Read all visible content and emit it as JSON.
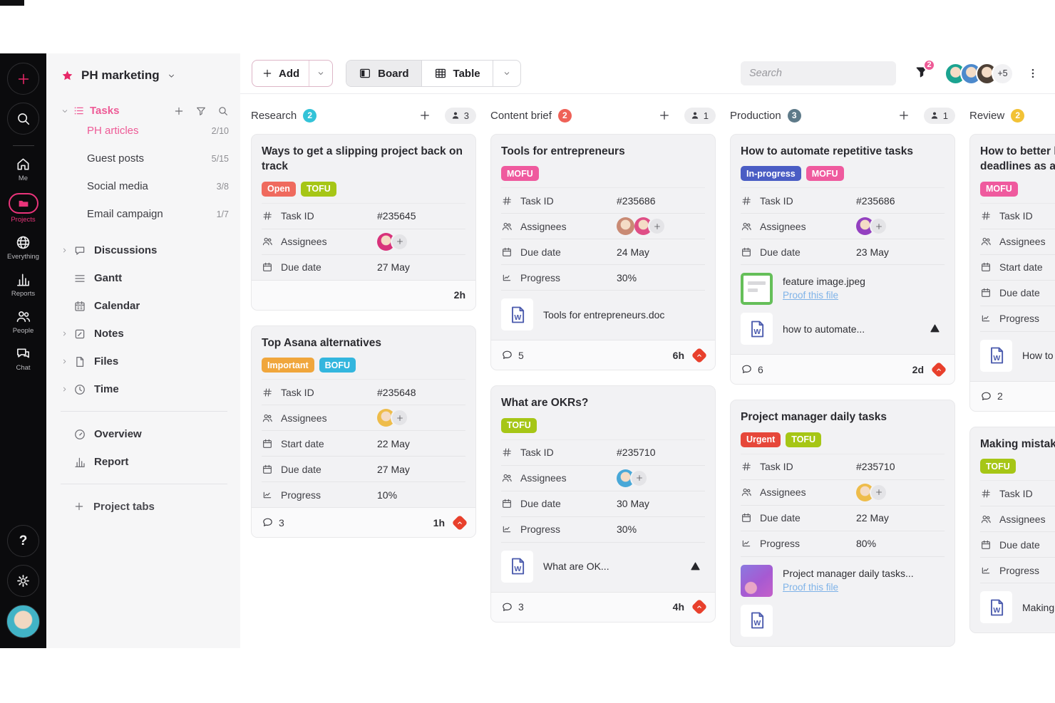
{
  "app": {
    "search_placeholder": "Search",
    "filter_badge": "2",
    "avatar_overflow": "+5"
  },
  "rail": {
    "actions": [
      {
        "id": "add",
        "icon": "plus"
      },
      {
        "id": "search",
        "icon": "search"
      }
    ],
    "nav": [
      {
        "id": "me",
        "icon": "home",
        "label": "Me",
        "active": false
      },
      {
        "id": "projects",
        "icon": "folder",
        "label": "Projects",
        "active": true
      },
      {
        "id": "everything",
        "icon": "globe",
        "label": "Everything",
        "active": false
      },
      {
        "id": "reports",
        "icon": "bar-chart",
        "label": "Reports",
        "active": false
      },
      {
        "id": "people",
        "icon": "people",
        "label": "People",
        "active": false
      },
      {
        "id": "chat",
        "icon": "chat",
        "label": "Chat",
        "active": false
      }
    ],
    "bottom": [
      {
        "id": "help",
        "icon": "help"
      },
      {
        "id": "settings",
        "icon": "gear"
      },
      {
        "id": "profile",
        "icon": "avatar"
      }
    ]
  },
  "sidebar": {
    "project_name": "PH marketing",
    "tasks_label": "Tasks",
    "task_lists": [
      {
        "label": "PH articles",
        "count": "2/10",
        "active": true
      },
      {
        "label": "Guest posts",
        "count": "5/15",
        "active": false
      },
      {
        "label": "Social media",
        "count": "3/8",
        "active": false
      },
      {
        "label": "Email campaign",
        "count": "1/7",
        "active": false
      }
    ],
    "nav": [
      {
        "label": "Discussions",
        "icon": "speech",
        "expandable": true
      },
      {
        "label": "Gantt",
        "icon": "gantt",
        "expandable": false
      },
      {
        "label": "Calendar",
        "icon": "calendar",
        "expandable": false
      },
      {
        "label": "Notes",
        "icon": "note",
        "expandable": true
      },
      {
        "label": "Files",
        "icon": "file",
        "expandable": true
      },
      {
        "label": "Time",
        "icon": "clock",
        "expandable": true
      }
    ],
    "views": [
      {
        "label": "Overview",
        "icon": "gauge"
      },
      {
        "label": "Report",
        "icon": "bar-chart"
      }
    ],
    "project_tabs_label": "Project tabs"
  },
  "toolbar": {
    "add_label": "Add",
    "views": [
      {
        "label": "Board",
        "icon": "board",
        "active": true
      },
      {
        "label": "Table",
        "icon": "table",
        "active": false
      }
    ],
    "avatars": [
      "#1ba390",
      "#4c89cc",
      "#4d4036"
    ]
  },
  "board": {
    "columns": [
      {
        "name": "Research",
        "count": "2",
        "badge_color": "#33c3d8",
        "members": "3",
        "show_actions": true,
        "cards": [
          {
            "title": "Ways to get a slipping project back on track",
            "tags": [
              {
                "label": "Open",
                "color": "#ef6a5e"
              },
              {
                "label": "TOFU",
                "color": "#a6c616"
              }
            ],
            "fields": [
              {
                "icon": "hash",
                "label": "Task ID",
                "value": "#235645"
              },
              {
                "icon": "assignees",
                "label": "Assignees",
                "avatars": [
                  "#d8327a"
                ],
                "add": true
              },
              {
                "icon": "calendar",
                "label": "Due date",
                "value": "27 May"
              }
            ],
            "attachments": [],
            "footer": {
              "comments": null,
              "time": "2h",
              "priority": false
            }
          },
          {
            "title": "Top Asana alternatives",
            "tags": [
              {
                "label": "Important",
                "color": "#f0a63c"
              },
              {
                "label": "BOFU",
                "color": "#33b6de"
              }
            ],
            "fields": [
              {
                "icon": "hash",
                "label": "Task ID",
                "value": "#235648"
              },
              {
                "icon": "assignees",
                "label": "Assignees",
                "avatars": [
                  "#eebc4a"
                ],
                "add": true
              },
              {
                "icon": "calendar",
                "label": "Start date",
                "value": "22 May"
              },
              {
                "icon": "calendar",
                "label": "Due date",
                "value": "27 May"
              },
              {
                "icon": "progress",
                "label": "Progress",
                "value": "10%"
              }
            ],
            "attachments": [],
            "footer": {
              "comments": "3",
              "time": "1h",
              "priority": true
            }
          }
        ]
      },
      {
        "name": "Content brief",
        "count": "2",
        "badge_color": "#ef6157",
        "members": "1",
        "show_actions": true,
        "cards": [
          {
            "title": "Tools for entrepreneurs",
            "tags": [
              {
                "label": "MOFU",
                "color": "#ef5a9e"
              }
            ],
            "fields": [
              {
                "icon": "hash",
                "label": "Task ID",
                "value": "#235686"
              },
              {
                "icon": "assignees",
                "label": "Assignees",
                "avatars": [
                  "#c98a74",
                  "#df4e86"
                ],
                "add": true
              },
              {
                "icon": "calendar",
                "label": "Due date",
                "value": "24 May"
              },
              {
                "icon": "progress",
                "label": "Progress",
                "value": "30%"
              }
            ],
            "attachments": [
              {
                "kind": "wdoc",
                "name": "Tools for entrepreneurs.doc",
                "link": null,
                "drive": false
              }
            ],
            "footer": {
              "comments": "5",
              "time": "6h",
              "priority": true
            }
          },
          {
            "title": "What are OKRs?",
            "tags": [
              {
                "label": "TOFU",
                "color": "#a6c616"
              }
            ],
            "fields": [
              {
                "icon": "hash",
                "label": "Task ID",
                "value": "#235710"
              },
              {
                "icon": "assignees",
                "label": "Assignees",
                "avatars": [
                  "#49a8d8"
                ],
                "add": true
              },
              {
                "icon": "calendar",
                "label": "Due date",
                "value": "30 May"
              },
              {
                "icon": "progress",
                "label": "Progress",
                "value": "30%"
              }
            ],
            "attachments": [
              {
                "kind": "wdoc",
                "name": "What are OK...",
                "link": null,
                "drive": true
              }
            ],
            "footer": {
              "comments": "3",
              "time": "4h",
              "priority": true
            }
          }
        ]
      },
      {
        "name": "Production",
        "count": "3",
        "badge_color": "#5e7a89",
        "members": "1",
        "show_actions": true,
        "cards": [
          {
            "title": "How to automate repetitive tasks",
            "tags": [
              {
                "label": "In-progress",
                "color": "#4a5dc4"
              },
              {
                "label": "MOFU",
                "color": "#ef5a9e"
              }
            ],
            "fields": [
              {
                "icon": "hash",
                "label": "Task ID",
                "value": "#235686"
              },
              {
                "icon": "assignees",
                "label": "Assignees",
                "avatars": [
                  "#9340c0"
                ],
                "add": true
              },
              {
                "icon": "calendar",
                "label": "Due date",
                "value": "23 May"
              }
            ],
            "attachments": [
              {
                "kind": "image-green",
                "name": "feature image.jpeg",
                "link": "Proof this file",
                "drive": false
              },
              {
                "kind": "wdoc",
                "name": "how to automate...",
                "link": null,
                "drive": true
              }
            ],
            "footer": {
              "comments": "6",
              "time": "2d",
              "priority": true
            }
          },
          {
            "title": "Project manager daily tasks",
            "tags": [
              {
                "label": "Urgent",
                "color": "#e6473a"
              },
              {
                "label": "TOFU",
                "color": "#a6c616"
              }
            ],
            "fields": [
              {
                "icon": "hash",
                "label": "Task ID",
                "value": "#235710"
              },
              {
                "icon": "assignees",
                "label": "Assignees",
                "avatars": [
                  "#eebc4a"
                ],
                "add": true
              },
              {
                "icon": "calendar",
                "label": "Due date",
                "value": "22 May"
              },
              {
                "icon": "progress",
                "label": "Progress",
                "value": "80%"
              }
            ],
            "attachments": [
              {
                "kind": "image-purple",
                "name": "Project manager daily tasks...",
                "link": "Proof this file",
                "drive": false
              },
              {
                "kind": "wdoc",
                "name": "",
                "link": null,
                "drive": false
              }
            ],
            "footer": null
          }
        ]
      },
      {
        "name": "Review",
        "count": "2",
        "badge_color": "#f2c236",
        "members": null,
        "show_actions": false,
        "cards": [
          {
            "title_lines": [
              "How to better h",
              "deadlines as a"
            ],
            "tags": [
              {
                "label": "MOFU",
                "color": "#ef5a9e"
              }
            ],
            "fields": [
              {
                "icon": "hash",
                "label": "Task ID",
                "value": ""
              },
              {
                "icon": "assignees",
                "label": "Assignees",
                "avatars": [],
                "add": false
              },
              {
                "icon": "calendar",
                "label": "Start date",
                "value": ""
              },
              {
                "icon": "calendar",
                "label": "Due date",
                "value": ""
              },
              {
                "icon": "progress",
                "label": "Progress",
                "value": ""
              }
            ],
            "attachments": [
              {
                "kind": "wdoc",
                "name": "How to",
                "link": null,
                "drive": false
              }
            ],
            "footer": {
              "comments": "2",
              "time": null,
              "priority": false
            }
          },
          {
            "title_lines": [
              "Making mistak"
            ],
            "tags": [
              {
                "label": "TOFU",
                "color": "#a6c616"
              }
            ],
            "fields": [
              {
                "icon": "hash",
                "label": "Task ID",
                "value": ""
              },
              {
                "icon": "assignees",
                "label": "Assignees",
                "avatars": [],
                "add": false
              },
              {
                "icon": "calendar",
                "label": "Due date",
                "value": ""
              },
              {
                "icon": "progress",
                "label": "Progress",
                "value": ""
              }
            ],
            "attachments": [
              {
                "kind": "wdoc",
                "name": "Making",
                "link": null,
                "drive": false
              }
            ],
            "footer": null
          }
        ]
      }
    ]
  }
}
